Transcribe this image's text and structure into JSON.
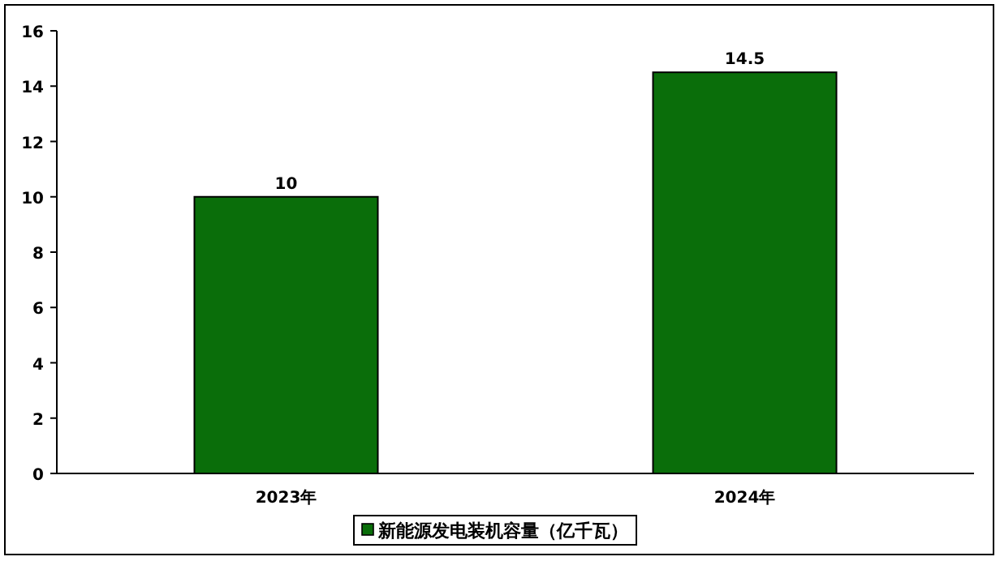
{
  "chart_data": {
    "type": "bar",
    "categories": [
      "2023年",
      "2024年"
    ],
    "series": [
      {
        "name": "新能源发电装机容量（亿千瓦）",
        "color": "#0a6e0a",
        "values": [
          10,
          14.5
        ]
      }
    ],
    "ylim": [
      0,
      16
    ],
    "yticks": [
      0,
      2,
      4,
      6,
      8,
      10,
      12,
      14,
      16
    ],
    "data_labels": true,
    "legend": "bottom"
  }
}
